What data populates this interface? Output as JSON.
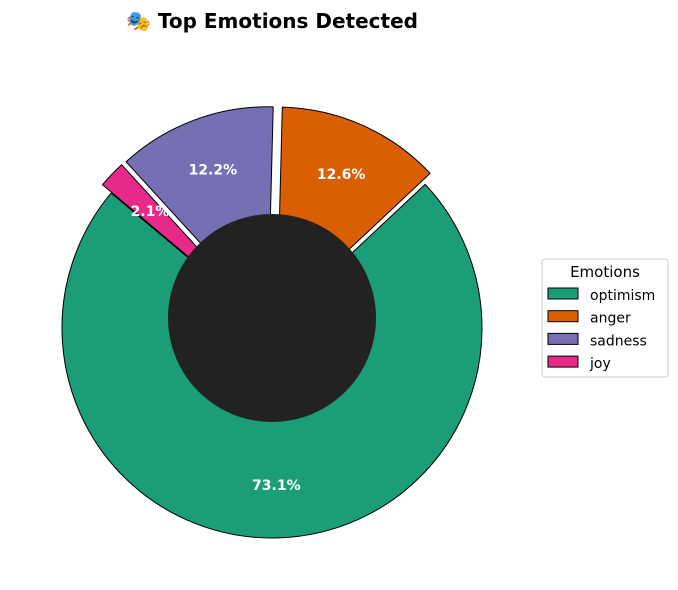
{
  "chart_data": {
    "type": "pie",
    "title": "🎭 Top Emotions Detected",
    "categories": [
      "optimism",
      "anger",
      "sadness",
      "joy"
    ],
    "values": [
      73.1,
      12.6,
      12.2,
      2.1
    ],
    "value_labels": [
      "73.1%",
      "12.6%",
      "12.2%",
      "2.1%"
    ],
    "colors": [
      "#1b9e77",
      "#d95f02",
      "#7570b3",
      "#e7298a"
    ],
    "hole_color": "#222222",
    "exploded": [
      false,
      true,
      true,
      true
    ],
    "legend": {
      "title": "Emotions",
      "position": "right"
    }
  }
}
